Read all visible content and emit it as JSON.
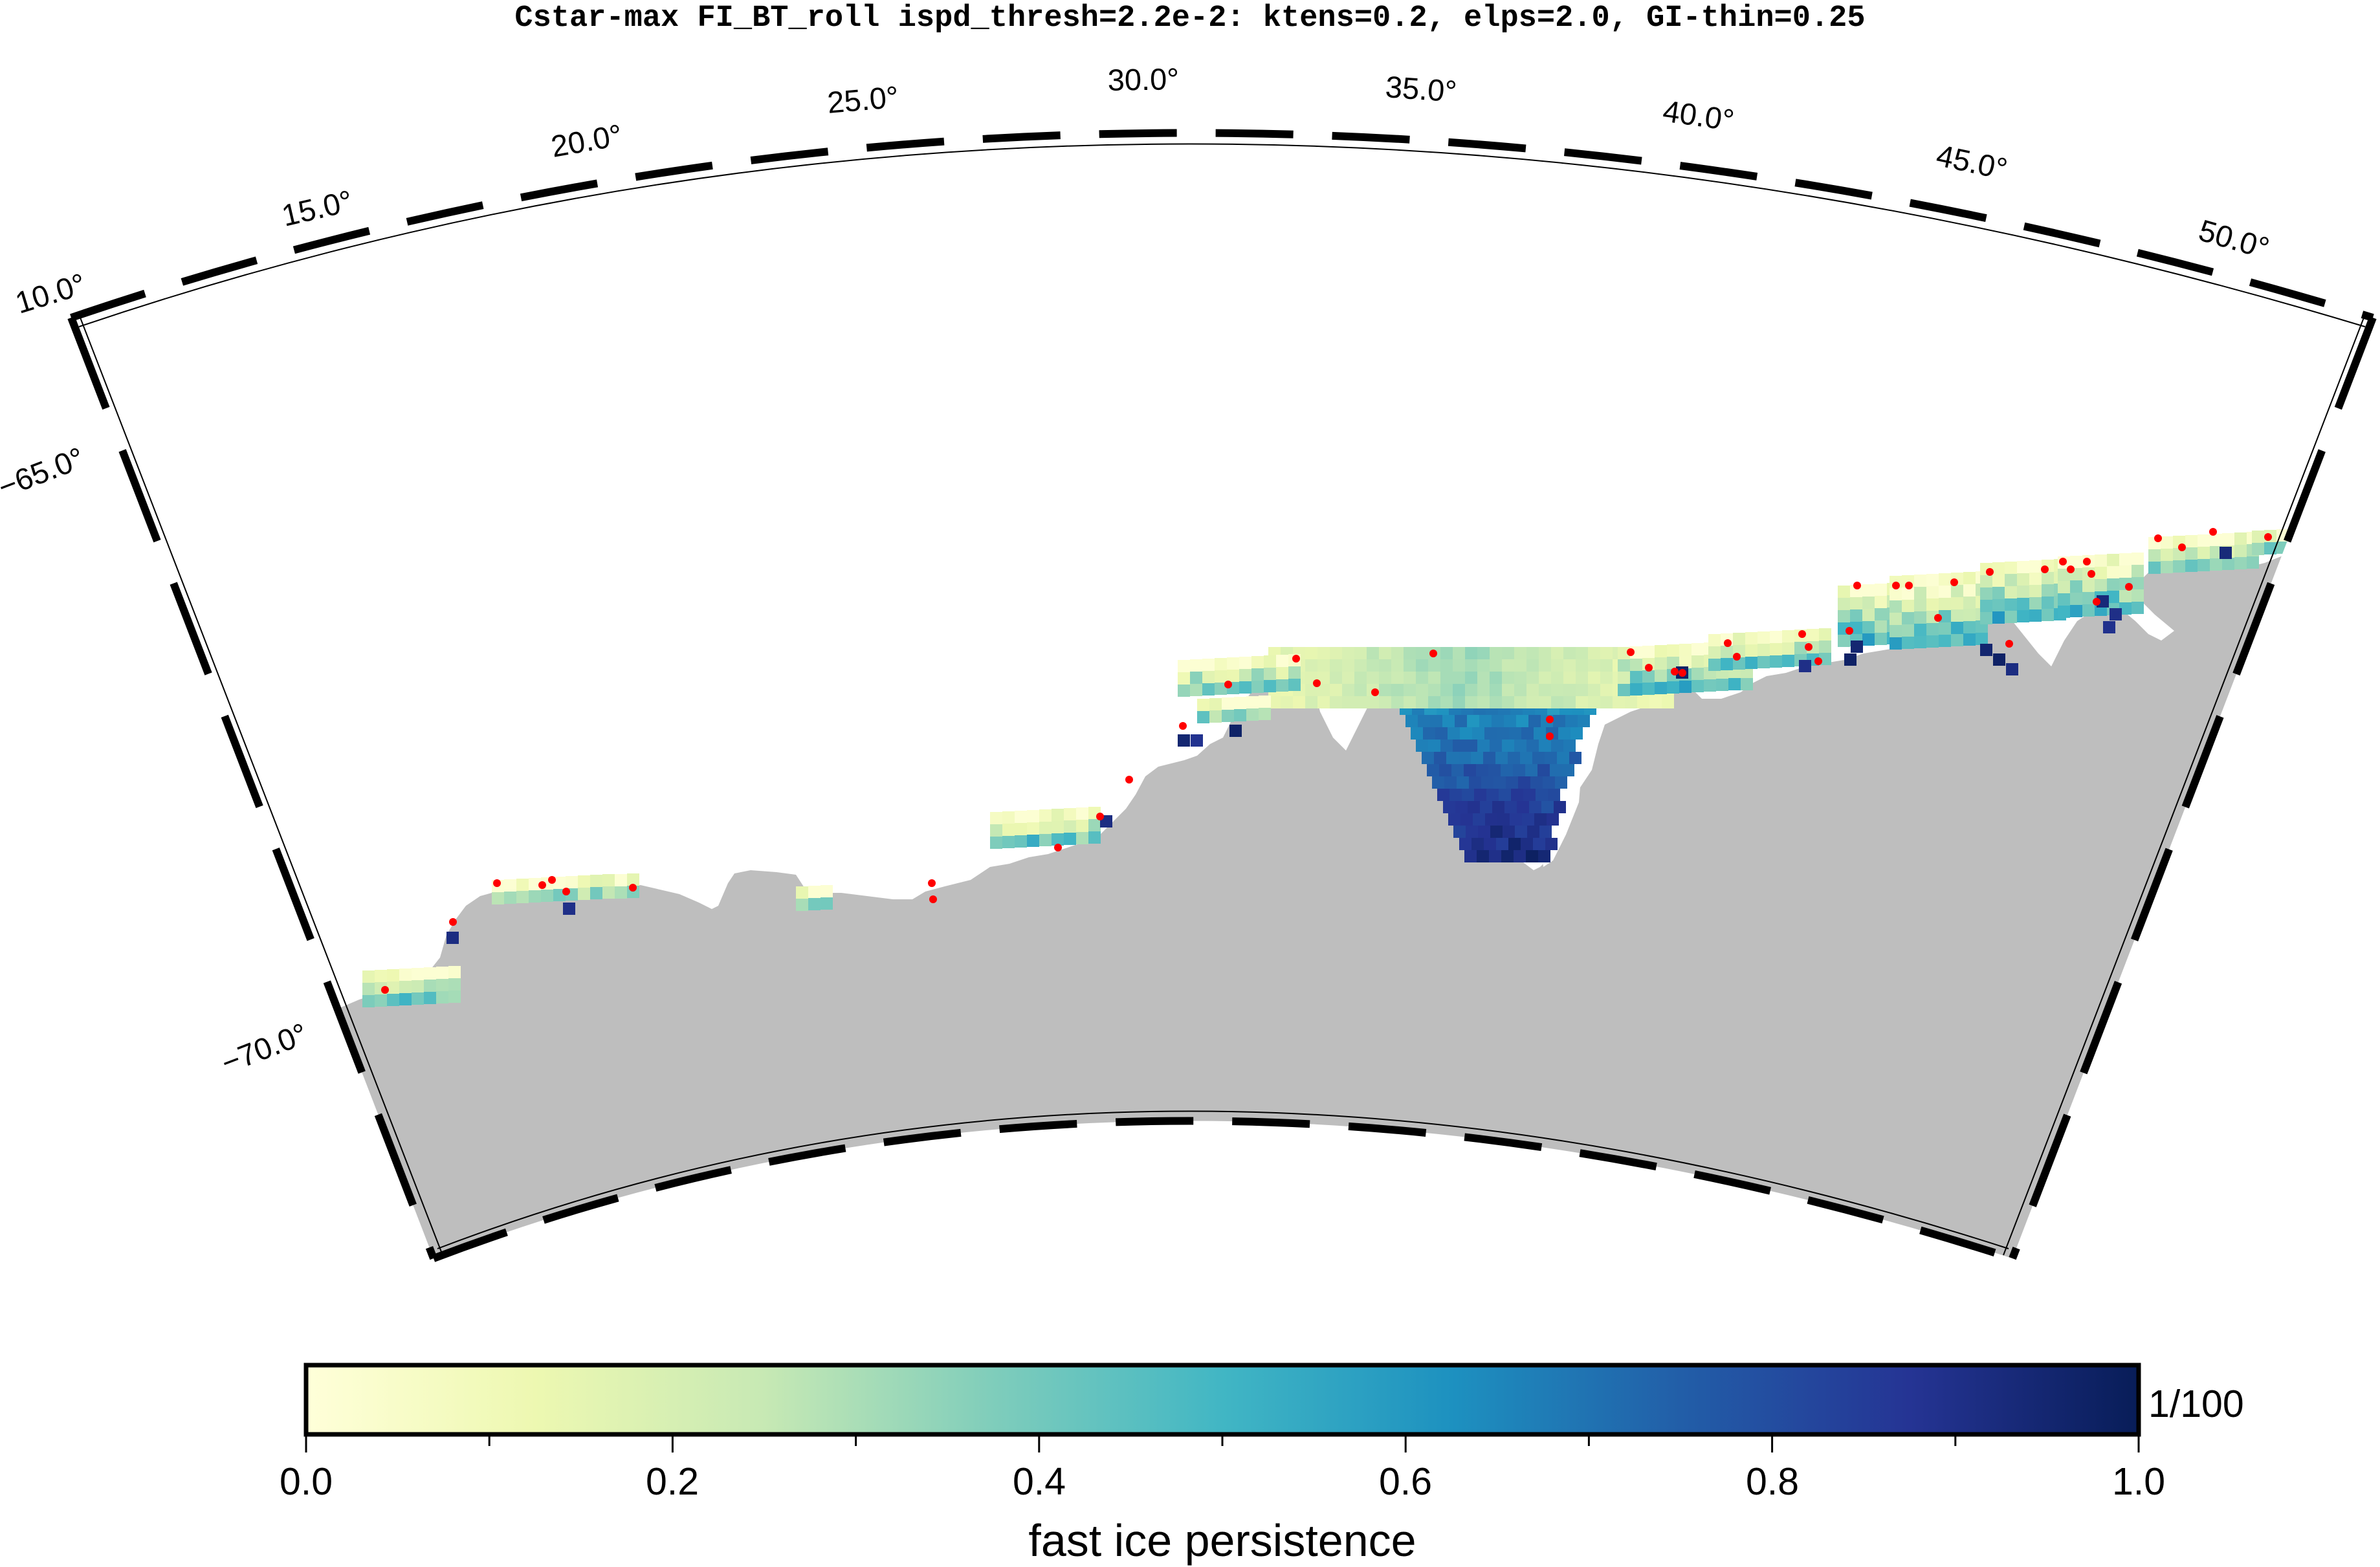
{
  "title": "Cstar-max FI_BT_roll ispd_thresh=2.2e-2: ktens=0.2, elps=2.0, GI-thin=0.25",
  "map": {
    "longitude_labels": [
      "10.0°",
      "15.0°",
      "20.0°",
      "25.0°",
      "30.0°",
      "35.0°",
      "40.0°",
      "45.0°",
      "50.0°"
    ],
    "latitude_labels": [
      "−65.0°",
      "−70.0°"
    ],
    "land_color": "#bebebe",
    "grounded_iceberg_marker_color": "#ff0000"
  },
  "colorbar": {
    "label": "fast ice persistence",
    "unit": "1/100",
    "tick_labels": [
      "0.0",
      "0.2",
      "0.4",
      "0.6",
      "0.8",
      "1.0"
    ],
    "range": [
      0.0,
      1.0
    ],
    "colormap": [
      "#ffffd9",
      "#edf8b1",
      "#c7e9b4",
      "#7fcdbb",
      "#41b6c4",
      "#1d91c0",
      "#225ea8",
      "#253494",
      "#081d58"
    ]
  }
}
